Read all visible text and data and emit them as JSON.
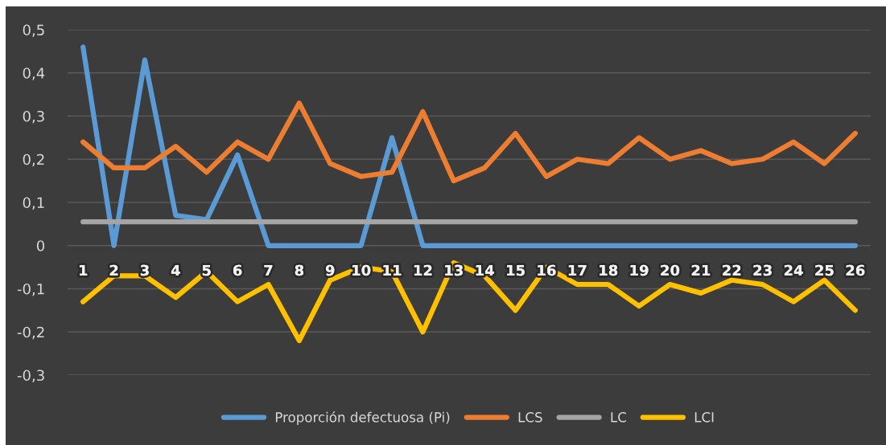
{
  "chart_data": {
    "type": "line",
    "categories": [
      "1",
      "2",
      "3",
      "4",
      "5",
      "6",
      "7",
      "8",
      "9",
      "10",
      "11",
      "12",
      "13",
      "14",
      "15",
      "16",
      "17",
      "18",
      "19",
      "20",
      "21",
      "22",
      "23",
      "24",
      "25",
      "26"
    ],
    "series": [
      {
        "name": "Proporción defectuosa (Pi)",
        "color": "#5b9bd5",
        "values": [
          0.46,
          0,
          0.43,
          0.07,
          0.06,
          0.21,
          0,
          0,
          0,
          0,
          0.25,
          0,
          0,
          0,
          0,
          0,
          0,
          0,
          0,
          0,
          0,
          0,
          0,
          0,
          0,
          0
        ]
      },
      {
        "name": "LCS",
        "color": "#ed7d31",
        "values": [
          0.24,
          0.18,
          0.18,
          0.23,
          0.17,
          0.24,
          0.2,
          0.33,
          0.19,
          0.16,
          0.17,
          0.31,
          0.15,
          0.18,
          0.26,
          0.16,
          0.2,
          0.19,
          0.25,
          0.2,
          0.22,
          0.19,
          0.2,
          0.24,
          0.19,
          0.26
        ]
      },
      {
        "name": "LC",
        "color": "#a5a5a5",
        "values": [
          0.055,
          0.055,
          0.055,
          0.055,
          0.055,
          0.055,
          0.055,
          0.055,
          0.055,
          0.055,
          0.055,
          0.055,
          0.055,
          0.055,
          0.055,
          0.055,
          0.055,
          0.055,
          0.055,
          0.055,
          0.055,
          0.055,
          0.055,
          0.055,
          0.055,
          0.055
        ]
      },
      {
        "name": "LCI",
        "color": "#ffc000",
        "values": [
          -0.13,
          -0.07,
          -0.07,
          -0.12,
          -0.06,
          -0.13,
          -0.09,
          -0.22,
          -0.08,
          -0.05,
          -0.06,
          -0.2,
          -0.04,
          -0.07,
          -0.15,
          -0.05,
          -0.09,
          -0.09,
          -0.14,
          -0.09,
          -0.11,
          -0.08,
          -0.09,
          -0.13,
          -0.08,
          -0.15
        ]
      }
    ],
    "ylim": [
      -0.3,
      0.5
    ],
    "yticks": [
      {
        "value": -0.3,
        "label": "-0,3"
      },
      {
        "value": -0.2,
        "label": "-0,2"
      },
      {
        "value": -0.1,
        "label": "-0,1"
      },
      0,
      {
        "value": 0.1,
        "label": "0,1"
      },
      {
        "value": 0.2,
        "label": "0,2"
      },
      {
        "value": 0.3,
        "label": "0,3"
      },
      {
        "value": 0.4,
        "label": "0,4"
      },
      {
        "value": 0.5,
        "label": "0,5"
      }
    ],
    "grid": "y",
    "legend": "bottom",
    "marker": "none",
    "line_style": "solid"
  }
}
